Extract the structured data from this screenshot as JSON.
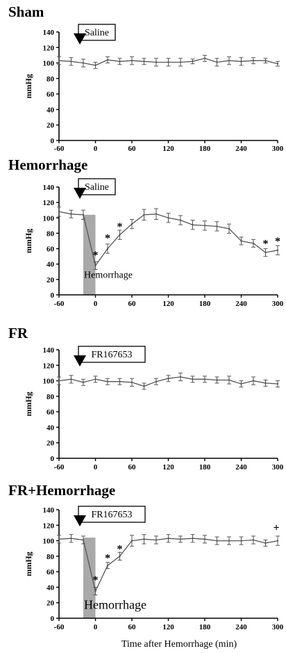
{
  "chart_data": [
    {
      "type": "line",
      "title": "Sham",
      "ylabel": "mmHg",
      "xlabel": "",
      "ylim": [
        0,
        140
      ],
      "yticks": [
        "0",
        "20",
        "40",
        "60",
        "80",
        "100",
        "120",
        "140"
      ],
      "xticks": [
        "-60",
        "0",
        "60",
        "120",
        "180",
        "240",
        "300"
      ],
      "xlim": [
        -60,
        300
      ],
      "annotation": "Saline",
      "hemorrhage_label": "",
      "shaded_interval": null,
      "series": [
        {
          "x": [
            -60,
            -40,
            -20,
            0,
            20,
            40,
            60,
            80,
            100,
            120,
            140,
            160,
            180,
            200,
            220,
            240,
            260,
            280,
            300
          ],
          "y": [
            103,
            102,
            100,
            97,
            104,
            102,
            103,
            102,
            101,
            101,
            101,
            102,
            106,
            101,
            103,
            102,
            103,
            103,
            99
          ],
          "err": [
            5,
            5,
            5,
            4,
            4,
            4,
            5,
            4,
            5,
            5,
            5,
            3,
            4,
            5,
            5,
            5,
            4,
            3,
            3
          ]
        }
      ],
      "stars": [],
      "cross": ""
    },
    {
      "type": "line",
      "title": "Hemorrhage",
      "ylabel": "mmHg",
      "xlabel": "",
      "ylim": [
        0,
        140
      ],
      "yticks": [
        "0",
        "20",
        "40",
        "60",
        "80",
        "100",
        "120",
        "140"
      ],
      "xticks": [
        "-60",
        "0",
        "60",
        "120",
        "180",
        "240",
        "300"
      ],
      "xlim": [
        -60,
        300
      ],
      "annotation": "Saline",
      "hemorrhage_label": "Hemorrhage",
      "shaded_interval": [
        -20,
        0
      ],
      "series": [
        {
          "x": [
            -60,
            -40,
            -20,
            0,
            20,
            40,
            60,
            80,
            100,
            120,
            140,
            160,
            180,
            200,
            220,
            240,
            260,
            280,
            300
          ],
          "y": [
            108,
            105,
            104,
            38,
            60,
            78,
            92,
            104,
            105,
            100,
            97,
            91,
            90,
            89,
            86,
            70,
            67,
            55,
            58
          ],
          "err": [
            6,
            5,
            6,
            5,
            6,
            6,
            6,
            7,
            7,
            6,
            6,
            6,
            6,
            6,
            6,
            5,
            5,
            5,
            6
          ]
        }
      ],
      "stars": [
        {
          "x": 0,
          "y": 56,
          "text": "*"
        },
        {
          "x": 20,
          "y": 78,
          "text": "*"
        },
        {
          "x": 40,
          "y": 93,
          "text": "*"
        },
        {
          "x": 280,
          "y": 71,
          "text": "*"
        },
        {
          "x": 300,
          "y": 74,
          "text": "*"
        }
      ],
      "cross": ""
    },
    {
      "type": "line",
      "title": "FR",
      "ylabel": "mmHg",
      "xlabel": "",
      "ylim": [
        0,
        140
      ],
      "yticks": [
        "0",
        "20",
        "40",
        "60",
        "80",
        "100",
        "120",
        "140"
      ],
      "xticks": [
        "-60",
        "0",
        "60",
        "120",
        "180",
        "240",
        "300"
      ],
      "xlim": [
        -60,
        300
      ],
      "annotation": "FR167653",
      "hemorrhage_label": "",
      "shaded_interval": null,
      "series": [
        {
          "x": [
            -60,
            -40,
            -20,
            0,
            20,
            40,
            60,
            80,
            100,
            120,
            140,
            160,
            180,
            200,
            220,
            240,
            260,
            280,
            300
          ],
          "y": [
            100,
            102,
            98,
            102,
            99,
            99,
            98,
            93,
            99,
            103,
            105,
            102,
            102,
            101,
            101,
            96,
            100,
            97,
            96
          ],
          "err": [
            5,
            5,
            4,
            4,
            4,
            4,
            5,
            4,
            4,
            4,
            5,
            4,
            4,
            4,
            5,
            4,
            5,
            4,
            4
          ]
        }
      ],
      "stars": [],
      "cross": ""
    },
    {
      "type": "line",
      "title": "FR+Hemorrhage",
      "ylabel": "mmHg",
      "xlabel": "Time after Hemorrhage (min)",
      "ylim": [
        0,
        140
      ],
      "yticks": [
        "0",
        "20",
        "40",
        "60",
        "80",
        "100",
        "120",
        "140"
      ],
      "xticks": [
        "-60",
        "0",
        "60",
        "120",
        "180",
        "240",
        "300"
      ],
      "xlim": [
        -60,
        300
      ],
      "annotation": "FR167653",
      "hemorrhage_label": "Hemorrhage",
      "shaded_interval": [
        -20,
        0
      ],
      "series": [
        {
          "x": [
            -60,
            -40,
            -20,
            0,
            20,
            40,
            60,
            80,
            100,
            120,
            140,
            160,
            180,
            200,
            220,
            240,
            260,
            280,
            300
          ],
          "y": [
            102,
            103,
            101,
            35,
            68,
            80,
            100,
            102,
            101,
            103,
            102,
            103,
            102,
            100,
            100,
            100,
            101,
            97,
            100
          ],
          "err": [
            5,
            5,
            5,
            5,
            4,
            5,
            7,
            6,
            5,
            5,
            4,
            5,
            5,
            5,
            5,
            5,
            5,
            4,
            6
          ]
        }
      ],
      "stars": [
        {
          "x": 0,
          "y": 54,
          "text": "*"
        },
        {
          "x": 20,
          "y": 82,
          "text": "*"
        },
        {
          "x": 40,
          "y": 94,
          "text": "*"
        }
      ],
      "cross": "+"
    }
  ]
}
